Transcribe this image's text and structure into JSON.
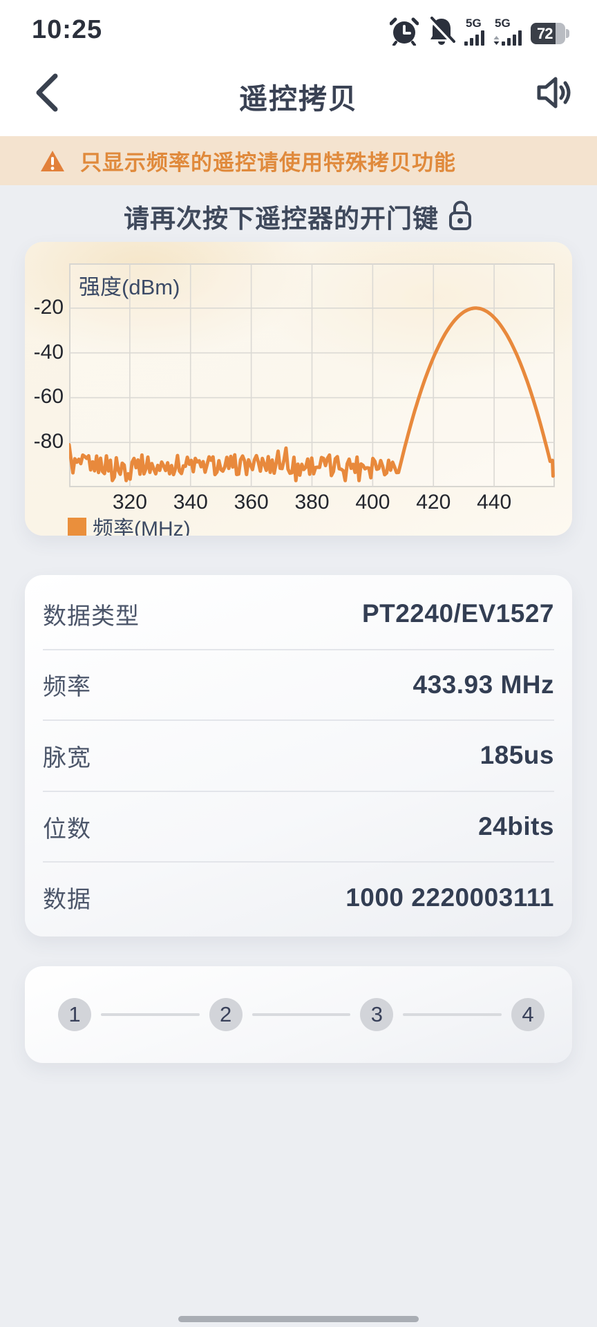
{
  "status_bar": {
    "time": "10:25",
    "network_1": "5G",
    "network_2": "5G",
    "battery_percent": "72"
  },
  "header": {
    "title": "遥控拷贝"
  },
  "warning_banner": {
    "text": "只显示频率的遥控请使用特殊拷贝功能"
  },
  "instruction": {
    "text": "请再次按下遥控器的开门键"
  },
  "chart_data": {
    "type": "line",
    "title": "",
    "ylabel": "强度(dBm)",
    "xlabel": "频率(MHz)",
    "legend": [
      "频率(MHz)"
    ],
    "legend_position": "bottom-left",
    "grid": true,
    "x_range": [
      300,
      460
    ],
    "y_range": [
      -100,
      0
    ],
    "x_ticks": [
      320,
      340,
      360,
      380,
      400,
      420,
      440
    ],
    "y_ticks": [
      -20,
      -40,
      -60,
      -80
    ],
    "series": [
      {
        "name": "频率(MHz)",
        "color": "#e8893c",
        "noise_floor_dbm": -90,
        "noise_jitter_dbm": 5,
        "noise_span_mhz": [
          300,
          409
        ],
        "peak": {
          "freq_mhz": 433.93,
          "level_dbm": -20,
          "half_width_mhz": 24.8
        }
      }
    ]
  },
  "info_table": {
    "rows": [
      {
        "label": "数据类型",
        "value": "PT2240/EV1527"
      },
      {
        "label": "频率",
        "value": "433.93 MHz"
      },
      {
        "label": "脉宽",
        "value": "185us"
      },
      {
        "label": "位数",
        "value": "24bits"
      },
      {
        "label": "数据",
        "value": "1000 2220003111"
      }
    ]
  },
  "stepper": {
    "steps": [
      "1",
      "2",
      "3",
      "4"
    ]
  }
}
